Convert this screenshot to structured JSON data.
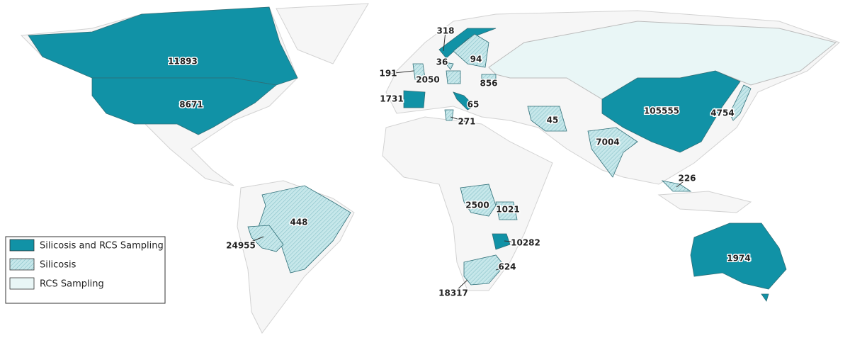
{
  "legend": [
    {
      "label": "Silicosis and RCS Sampling",
      "color": "#1192a6"
    },
    {
      "label": "Silicosis",
      "color": "#c6e7ea"
    },
    {
      "label": "RCS Sampling",
      "color": "#e9f6f6"
    }
  ],
  "regions": [
    {
      "value": 11893,
      "category": 0
    },
    {
      "value": 8671,
      "category": 0
    },
    {
      "value": 318,
      "category": 0
    },
    {
      "value": 94,
      "category": 1
    },
    {
      "value": 36,
      "category": 1
    },
    {
      "value": 191,
      "category": 1
    },
    {
      "value": 2050,
      "category": 1
    },
    {
      "value": 856,
      "category": 1
    },
    {
      "value": 1731,
      "category": 0
    },
    {
      "value": 65,
      "category": 0
    },
    {
      "value": 271,
      "category": 1
    },
    {
      "value": 45,
      "category": 1
    },
    {
      "value": 105555,
      "category": 0
    },
    {
      "value": 4754,
      "category": 1
    },
    {
      "value": 7004,
      "category": 1
    },
    {
      "value": 226,
      "category": 1
    },
    {
      "value": 2500,
      "category": 1
    },
    {
      "value": 1021,
      "category": 1
    },
    {
      "value": 448,
      "category": 1
    },
    {
      "value": 24955,
      "category": 1
    },
    {
      "value": 10282,
      "category": 0
    },
    {
      "value": 624,
      "category": 1
    },
    {
      "value": 18317,
      "category": 1
    },
    {
      "value": 1974,
      "category": 0
    }
  ]
}
